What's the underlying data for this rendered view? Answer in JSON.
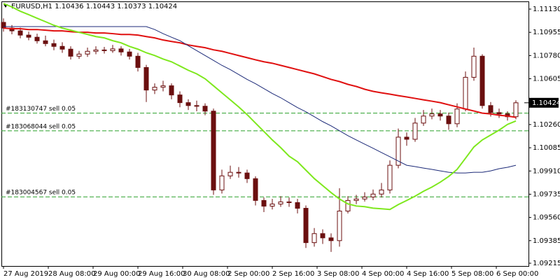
{
  "chart_data": {
    "type": "candlestick",
    "header": "EURUSD,H1  1.10436 1.10443 1.10373 1.10424",
    "x_labels": [
      "27 Aug 2019",
      "28 Aug 08:00",
      "29 Aug 00:00",
      "29 Aug 16:00",
      "30 Aug 08:00",
      "2 Sep 00:00",
      "2 Sep 16:00",
      "3 Sep 08:00",
      "4 Sep 00:00",
      "4 Sep 16:00",
      "5 Sep 08:00",
      "6 Sep 00:00"
    ],
    "open": [
      1.1103,
      1.10987,
      1.10966,
      1.10934,
      1.10918,
      1.10891,
      1.1087,
      1.10849,
      1.10828,
      1.10775,
      1.10791,
      1.10812,
      1.10822,
      1.10817,
      1.1083,
      1.10807,
      1.10775,
      1.1069,
      1.1052,
      1.10541,
      1.10552,
      1.10483,
      1.10425,
      1.10403,
      1.10398,
      1.10361,
      1.09767,
      1.09873,
      1.099,
      1.09895,
      1.09852,
      1.09688,
      1.09645,
      1.09661,
      1.09677,
      1.09672,
      1.09629,
      1.0937,
      1.09438,
      1.09406,
      1.09385,
      1.09608,
      1.09688,
      1.09699,
      1.09714,
      1.09736,
      1.09767,
      1.09953,
      1.10165,
      1.10149,
      1.10271,
      1.10324,
      1.1034,
      1.10324,
      1.10266,
      1.10377,
      1.10616,
      1.10775,
      1.10403,
      1.1035,
      1.1034,
      1.10319
    ],
    "high": [
      1.1106,
      1.1101,
      1.1099,
      1.1096,
      1.10945,
      1.1093,
      1.109,
      1.1088,
      1.1085,
      1.10815,
      1.1084,
      1.1085,
      1.10845,
      1.1086,
      1.1085,
      1.1083,
      1.108,
      1.1071,
      1.1057,
      1.1059,
      1.1057,
      1.1051,
      1.1045,
      1.1044,
      1.1042,
      1.1038,
      1.0992,
      1.0995,
      1.0994,
      1.0992,
      1.0987,
      1.0971,
      1.097,
      1.0972,
      1.0971,
      1.097,
      1.0965,
      1.0948,
      1.0947,
      1.0944,
      1.0978,
      1.0972,
      1.0973,
      1.0975,
      1.0977,
      1.0982,
      1.0999,
      1.1023,
      1.102,
      1.1031,
      1.1037,
      1.1038,
      1.1037,
      1.1035,
      1.1042,
      1.1066,
      1.1084,
      1.1079,
      1.1043,
      1.1038,
      1.1036,
      1.10443
    ],
    "low": [
      1.1096,
      1.1094,
      1.1091,
      1.10895,
      1.1087,
      1.1085,
      1.1082,
      1.108,
      1.1075,
      1.10755,
      1.1077,
      1.1079,
      1.10795,
      1.108,
      1.1078,
      1.1075,
      1.1066,
      1.1043,
      1.1049,
      1.1051,
      1.1045,
      1.1039,
      1.1037,
      1.1036,
      1.1033,
      1.0973,
      1.0974,
      1.0985,
      1.0986,
      1.0982,
      1.0965,
      1.096,
      1.0962,
      1.0964,
      1.0964,
      1.0959,
      1.0933,
      1.0934,
      1.0936,
      1.093,
      1.0934,
      1.0959,
      1.0966,
      1.0968,
      1.0969,
      1.0971,
      1.0974,
      1.0993,
      1.101,
      1.1013,
      1.1025,
      1.103,
      1.1029,
      1.1022,
      1.1024,
      1.1036,
      1.1059,
      1.1038,
      1.1032,
      1.1031,
      1.1029,
      1.103
    ],
    "close": [
      1.10987,
      1.10966,
      1.10934,
      1.10918,
      1.10891,
      1.1087,
      1.10849,
      1.10828,
      1.10775,
      1.10791,
      1.10812,
      1.10822,
      1.10817,
      1.1083,
      1.10807,
      1.10775,
      1.1069,
      1.1052,
      1.10541,
      1.10552,
      1.10483,
      1.10425,
      1.10403,
      1.10398,
      1.10361,
      1.09767,
      1.09873,
      1.099,
      1.09895,
      1.09852,
      1.09688,
      1.09645,
      1.09661,
      1.09677,
      1.09672,
      1.09629,
      1.0937,
      1.09438,
      1.09406,
      1.09385,
      1.09608,
      1.09688,
      1.09699,
      1.09714,
      1.09736,
      1.09767,
      1.09953,
      1.10165,
      1.10149,
      1.10271,
      1.10324,
      1.1034,
      1.10324,
      1.10266,
      1.10377,
      1.10616,
      1.10775,
      1.10403,
      1.1035,
      1.1034,
      1.10319,
      1.10424
    ],
    "candle_color": "#6b0f0f",
    "series": [
      {
        "color": "#e01010",
        "line_width": 2,
        "values": [
          1.10987,
          1.10982,
          1.10982,
          1.10976,
          1.10976,
          1.10971,
          1.10966,
          1.10966,
          1.1096,
          1.10955,
          1.10955,
          1.1095,
          1.1095,
          1.10945,
          1.10939,
          1.10939,
          1.10934,
          1.10923,
          1.10913,
          1.10897,
          1.10886,
          1.10876,
          1.1086,
          1.10849,
          1.10839,
          1.10823,
          1.10812,
          1.10796,
          1.1078,
          1.10764,
          1.10748,
          1.10733,
          1.10722,
          1.10706,
          1.1069,
          1.10674,
          1.10658,
          1.10642,
          1.10621,
          1.106,
          1.10584,
          1.10563,
          1.10547,
          1.10526,
          1.1051,
          1.10499,
          1.10489,
          1.10478,
          1.10468,
          1.10457,
          1.10446,
          1.10436,
          1.10425,
          1.10409,
          1.10393,
          1.10377,
          1.10362,
          1.10346,
          1.1034,
          1.1033,
          1.10324,
          1.10314
        ]
      },
      {
        "color": "#1c2a78",
        "line_width": 1,
        "values": [
          1.10998,
          1.10998,
          1.10998,
          1.10998,
          1.10998,
          1.10998,
          1.10998,
          1.10998,
          1.10998,
          1.10998,
          1.10998,
          1.10998,
          1.10998,
          1.10998,
          1.10998,
          1.10998,
          1.10998,
          1.10998,
          1.10976,
          1.10945,
          1.10918,
          1.10892,
          1.10854,
          1.10817,
          1.1078,
          1.10743,
          1.10706,
          1.10674,
          1.10637,
          1.106,
          1.10568,
          1.10531,
          1.10494,
          1.10462,
          1.10425,
          1.10388,
          1.10356,
          1.10319,
          1.10282,
          1.1025,
          1.10213,
          1.10176,
          1.10144,
          1.10112,
          1.10081,
          1.10049,
          1.10017,
          1.09985,
          1.09953,
          1.09943,
          1.09932,
          1.09922,
          1.09911,
          1.099,
          1.09895,
          1.09895,
          1.099,
          1.099,
          1.09911,
          1.09927,
          1.09938,
          1.09953
        ]
      },
      {
        "color": "#7ee81e",
        "line_width": 2,
        "values": [
          1.11172,
          1.11146,
          1.11114,
          1.11088,
          1.11061,
          1.11035,
          1.11008,
          1.10987,
          1.10971,
          1.10955,
          1.10939,
          1.10923,
          1.10913,
          1.10892,
          1.10876,
          1.10849,
          1.10828,
          1.10801,
          1.1078,
          1.10754,
          1.10733,
          1.10701,
          1.10669,
          1.10642,
          1.10605,
          1.10552,
          1.10499,
          1.10446,
          1.10393,
          1.10335,
          1.10271,
          1.10208,
          1.10144,
          1.10086,
          1.10022,
          1.0998,
          1.09916,
          1.09853,
          1.098,
          1.09747,
          1.09699,
          1.09662,
          1.09646,
          1.09641,
          1.0963,
          1.09625,
          1.0962,
          1.09657,
          1.09688,
          1.0972,
          1.09757,
          1.09789,
          1.09826,
          1.09869,
          1.09922,
          1.10006,
          1.10091,
          1.10144,
          1.10181,
          1.10218,
          1.10261,
          1.10287
        ]
      }
    ],
    "orders": [
      {
        "label": "#183130747 sell 0.05",
        "price": 1.10346,
        "color": "#2aa02a"
      },
      {
        "label": "#183068044 sell 0.05",
        "price": 1.10213,
        "color": "#2aa02a"
      },
      {
        "label": "#183004567 sell 0.05",
        "price": 1.09715,
        "color": "#2aa02a"
      }
    ],
    "ylim": [
      1.09194,
      1.11188
    ],
    "yticks": [
      {
        "value": 1.1113,
        "label": "1.11130"
      },
      {
        "value": 1.10955,
        "label": "1.10955"
      },
      {
        "value": 1.1078,
        "label": "1.10780"
      },
      {
        "value": 1.10605,
        "label": "1.10605"
      },
      {
        "value": 1.1026,
        "label": "1.10260"
      },
      {
        "value": 1.10085,
        "label": "1.10085"
      },
      {
        "value": 1.0991,
        "label": "1.09910"
      },
      {
        "value": 1.09735,
        "label": "1.09735"
      },
      {
        "value": 1.0956,
        "label": "1.09560"
      },
      {
        "value": 1.09385,
        "label": "1.09385"
      },
      {
        "value": 1.09215,
        "label": "1.09215"
      }
    ],
    "current_price": {
      "value": 1.10424,
      "label": "1.10424"
    }
  }
}
